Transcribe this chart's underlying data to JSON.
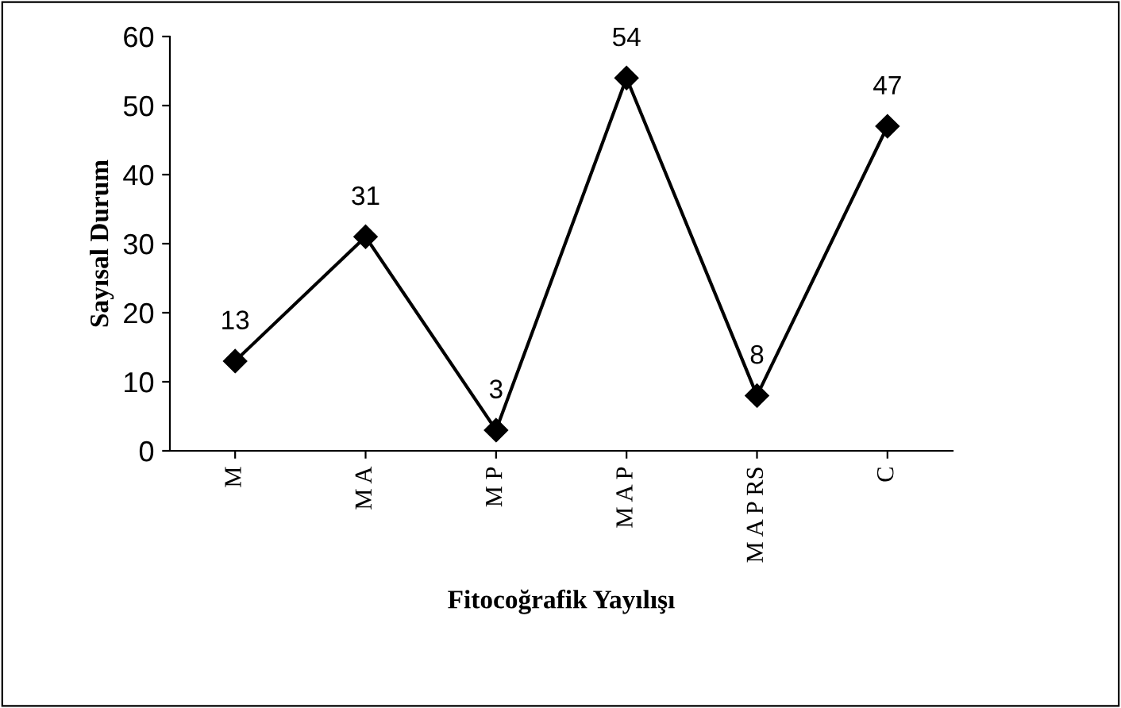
{
  "chart_data": {
    "type": "line",
    "xlabel": "Fitocoğrafik Yayılışı",
    "ylabel": "Sayısal Durum",
    "categories": [
      "M",
      "M A",
      "M P",
      "M A P",
      "M A P RS",
      "C"
    ],
    "series": [
      {
        "color": "#000000",
        "values": [
          13,
          31,
          3,
          54,
          8,
          47
        ]
      }
    ],
    "ylim": [
      0,
      60
    ],
    "yticks": [
      0,
      10,
      20,
      30,
      40,
      50,
      60
    ],
    "marker": "diamond",
    "line_style": "solid",
    "data_labels": true,
    "grid": false,
    "legend": false
  }
}
